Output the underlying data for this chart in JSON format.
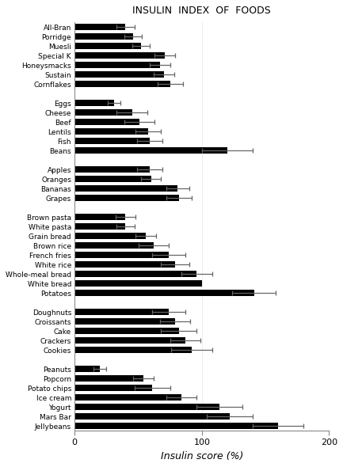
{
  "title": "INSULIN  INDEX  OF  FOODS",
  "xlabel": "Insulin score (%)",
  "categories": [
    "All-Bran",
    "Porridge",
    "Muesli",
    "Special K",
    "Honeysmacks",
    "Sustain",
    "Cornflakes",
    "",
    "Eggs",
    "Cheese",
    "Beef",
    "Lentils",
    "Fish",
    "Beans",
    "",
    "Apples",
    "Oranges",
    "Bananas",
    "Grapes",
    "",
    "Brown pasta",
    "White pasta",
    "Grain bread",
    "Brown rice",
    "French fries",
    "White rice",
    "Whole-meal bread",
    "White bread",
    "Potatoes",
    "",
    "Doughnuts",
    "Croissants",
    "Cake",
    "Crackers",
    "Cookies",
    "",
    "Peanuts",
    "Popcorn",
    "Potato chips",
    "Ice cream",
    "Yogurt",
    "Mars Bar",
    "Jellybeans"
  ],
  "values": [
    40,
    46,
    52,
    71,
    67,
    70,
    75,
    0,
    31,
    45,
    51,
    58,
    59,
    120,
    0,
    59,
    60,
    81,
    82,
    0,
    40,
    40,
    56,
    62,
    74,
    79,
    96,
    100,
    141,
    0,
    74,
    79,
    82,
    87,
    92,
    0,
    20,
    54,
    61,
    84,
    114,
    122,
    160
  ],
  "errors": [
    7,
    7,
    7,
    8,
    8,
    8,
    10,
    0,
    5,
    12,
    12,
    10,
    10,
    20,
    0,
    10,
    8,
    9,
    10,
    0,
    8,
    7,
    8,
    12,
    13,
    11,
    12,
    0,
    17,
    0,
    13,
    12,
    14,
    12,
    16,
    0,
    5,
    8,
    14,
    12,
    18,
    18,
    20
  ],
  "xlim": [
    0,
    200
  ],
  "xticks": [
    0,
    100,
    200
  ],
  "bar_color": "#000000",
  "bg_color": "#ffffff",
  "figsize": [
    4.33,
    5.9
  ],
  "dpi": 100
}
